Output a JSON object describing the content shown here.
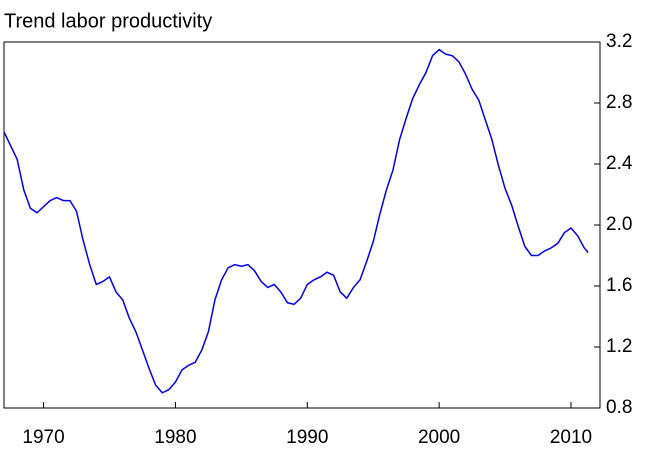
{
  "chart_data": {
    "type": "line",
    "title": "Trend labor productivity",
    "x": [
      1967,
      1968,
      1968.5,
      1969,
      1969.5,
      1970,
      1970.5,
      1971,
      1971.5,
      1972,
      1972.5,
      1973,
      1973.5,
      1974,
      1974.5,
      1975,
      1975.5,
      1976,
      1976.5,
      1977,
      1977.5,
      1978,
      1978.5,
      1979,
      1979.5,
      1980,
      1980.5,
      1981,
      1981.5,
      1982,
      1982.5,
      1983,
      1983.5,
      1984,
      1984.5,
      1985,
      1985.5,
      1986,
      1986.5,
      1987,
      1987.5,
      1988,
      1988.5,
      1989,
      1989.5,
      1990,
      1990.5,
      1991,
      1991.5,
      1992,
      1992.5,
      1993,
      1993.5,
      1994,
      1994.5,
      1995,
      1995.5,
      1996,
      1996.5,
      1997,
      1997.5,
      1998,
      1998.5,
      1999,
      1999.5,
      2000,
      2000.5,
      2001,
      2001.5,
      2002,
      2002.5,
      2003,
      2003.5,
      2004,
      2004.5,
      2005,
      2005.5,
      2006,
      2006.5,
      2007,
      2007.5,
      2008,
      2008.5,
      2009,
      2009.5,
      2010,
      2010.5,
      2011,
      2011.3
    ],
    "values": [
      2.61,
      2.43,
      2.23,
      2.11,
      2.08,
      2.12,
      2.16,
      2.18,
      2.16,
      2.16,
      2.09,
      1.9,
      1.74,
      1.61,
      1.63,
      1.66,
      1.56,
      1.51,
      1.39,
      1.3,
      1.18,
      1.06,
      0.95,
      0.9,
      0.92,
      0.97,
      1.05,
      1.08,
      1.1,
      1.18,
      1.3,
      1.51,
      1.64,
      1.72,
      1.74,
      1.73,
      1.74,
      1.7,
      1.63,
      1.59,
      1.61,
      1.56,
      1.49,
      1.48,
      1.52,
      1.61,
      1.64,
      1.66,
      1.69,
      1.67,
      1.56,
      1.52,
      1.59,
      1.64,
      1.76,
      1.89,
      2.07,
      2.23,
      2.36,
      2.56,
      2.7,
      2.83,
      2.92,
      3.0,
      3.11,
      3.15,
      3.12,
      3.11,
      3.07,
      2.99,
      2.89,
      2.82,
      2.69,
      2.56,
      2.39,
      2.24,
      2.13,
      1.99,
      1.86,
      1.8,
      1.8,
      1.83,
      1.85,
      1.88,
      1.95,
      1.98,
      1.93,
      1.85,
      1.82
    ],
    "color": "#0000ee",
    "xlim": [
      1967,
      2012.2
    ],
    "xticks": [
      1970,
      1980,
      1990,
      2000,
      2010
    ],
    "ylim": [
      0.8,
      3.2
    ],
    "yticks": [
      0.8,
      1.2,
      1.6,
      {
        "value": 2.0,
        "label": "2.0"
      },
      2.4,
      2.8,
      3.2
    ]
  }
}
